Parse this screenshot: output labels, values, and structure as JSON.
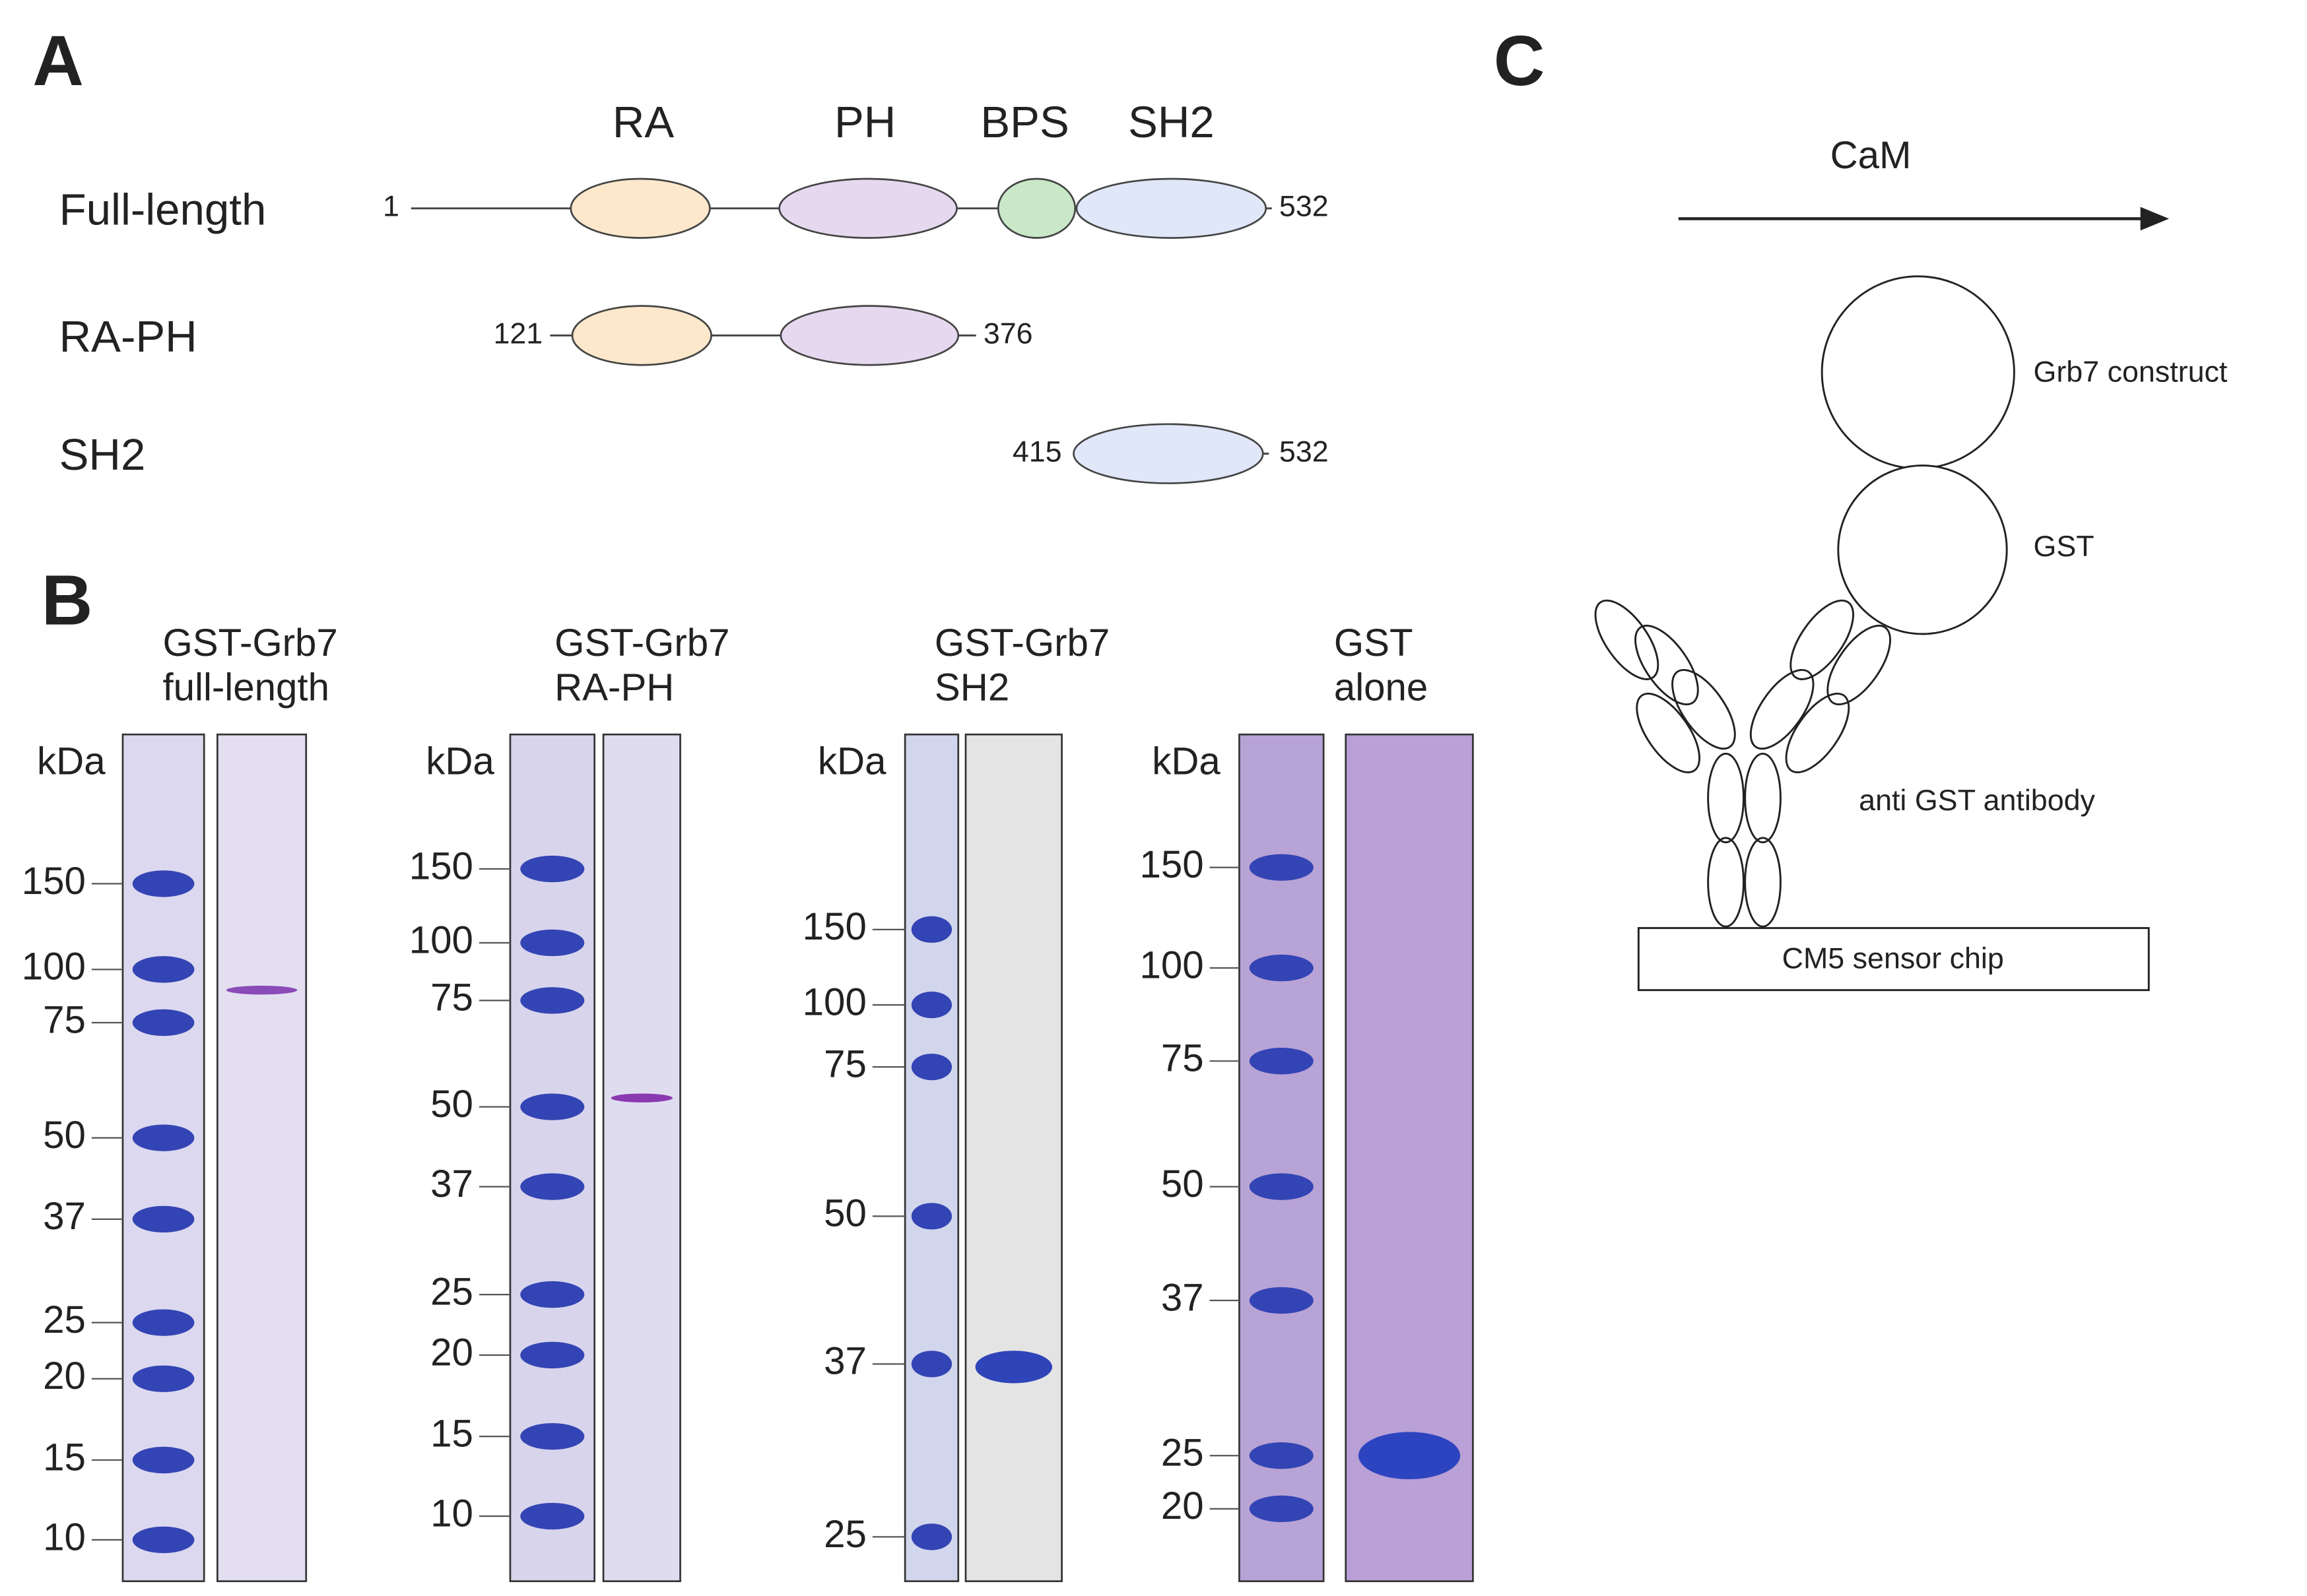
{
  "panel_a": {
    "label": "A",
    "domains": [
      "RA",
      "PH",
      "BPS",
      "SH2"
    ],
    "constructs": [
      {
        "name": "Full-length",
        "start": "1",
        "end": "532"
      },
      {
        "name": "RA-PH",
        "start": "121",
        "end": "376"
      },
      {
        "name": "SH2",
        "start": "415",
        "end": "532"
      }
    ]
  },
  "panel_b": {
    "label": "B",
    "gels": [
      {
        "title": [
          "GST-Grb7",
          "full-length"
        ],
        "unit": "kDa",
        "markers": [
          "150",
          "100",
          "75",
          "50",
          "37",
          "25",
          "20",
          "15",
          "10"
        ]
      },
      {
        "title": [
          "GST-Grb7",
          "RA-PH"
        ],
        "unit": "kDa",
        "markers": [
          "150",
          "100",
          "75",
          "50",
          "37",
          "25",
          "20",
          "15",
          "10"
        ]
      },
      {
        "title": [
          "GST-Grb7",
          "SH2"
        ],
        "unit": "kDa",
        "markers": [
          "150",
          "100",
          "75",
          "50",
          "37",
          "25"
        ]
      },
      {
        "title": [
          "GST",
          "alone"
        ],
        "unit": "kDa",
        "markers": [
          "150",
          "100",
          "75",
          "50",
          "37",
          "25",
          "20"
        ]
      }
    ]
  },
  "panel_c": {
    "label": "C",
    "treatment": "CaM",
    "construct": "Grb7 construct",
    "tag": "GST",
    "antibody": "anti GST antibody",
    "chip": "CM5 sensor chip"
  }
}
